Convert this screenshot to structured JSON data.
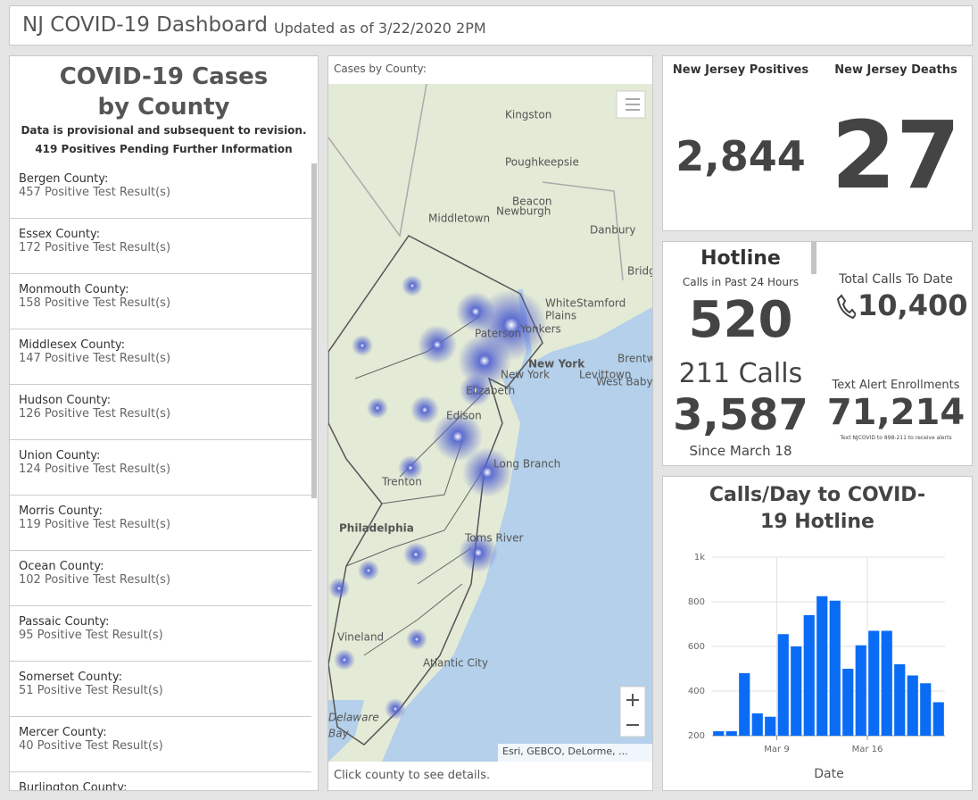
{
  "header": {
    "title": "NJ COVID-19 Dashboard",
    "subtitle": "Updated as of 3/22/2020 2PM"
  },
  "county_panel": {
    "title": "COVID-19 Cases by County",
    "note": "Data is provisional and subsequent to revision.",
    "pending": "419 Positives Pending Further Information",
    "counties": [
      {
        "name": "Bergen County:",
        "result": "457 Positive Test Result(s)"
      },
      {
        "name": "Essex County:",
        "result": "172 Positive Test Result(s)"
      },
      {
        "name": "Monmouth County:",
        "result": "158 Positive Test Result(s)"
      },
      {
        "name": "Middlesex County:",
        "result": "147 Positive Test Result(s)"
      },
      {
        "name": "Hudson County:",
        "result": "126 Positive Test Result(s)"
      },
      {
        "name": "Union County:",
        "result": "124 Positive Test Result(s)"
      },
      {
        "name": "Morris County:",
        "result": "119 Positive Test Result(s)"
      },
      {
        "name": "Ocean County:",
        "result": "102 Positive Test Result(s)"
      },
      {
        "name": "Passaic County:",
        "result": "95 Positive Test Result(s)"
      },
      {
        "name": "Somerset County:",
        "result": "51 Positive Test Result(s)"
      },
      {
        "name": "Mercer County:",
        "result": "40 Positive Test Result(s)"
      },
      {
        "name": "Burlington County:"
      }
    ]
  },
  "map_panel": {
    "title": "Cases by County:",
    "footer": "Click county to see details.",
    "attribution": "Esri, GEBCO, DeLorme, ...",
    "places": [
      "Kingston",
      "Poughkeepsie",
      "Beacon",
      "Newburgh",
      "Middletown",
      "Danbury",
      "Bridg",
      "White",
      "Plains",
      "Stamford",
      "Paterson",
      "Yonkers",
      "New York",
      "New York",
      "Levittown",
      "Brentw",
      "West Baby",
      "Elizabeth",
      "Edison",
      "Long Branch",
      "Trenton",
      "Philadelphia",
      "Toms River",
      "Vineland",
      "Atlantic City",
      "Delaware",
      "Bay"
    ]
  },
  "stats": {
    "positives_label": "New Jersey Positives",
    "positives": "2,844",
    "deaths_label": "New Jersey Deaths",
    "deaths": "27"
  },
  "hotline": {
    "title": "Hotline",
    "calls_label": "Calls in Past 24 Hours",
    "calls": "520",
    "calls211_label": "211 Calls",
    "calls211": "3,587",
    "since": "Since March 18",
    "total_label": "Total Calls To Date",
    "total": "10,400",
    "text_label": "Text Alert Enrollments",
    "text": "71,214",
    "text_note": "Text NJCOVID to 898-211 to receive alerts"
  },
  "chart_data": {
    "type": "bar",
    "title": "Calls/Day to COVID-19 Hotline",
    "x_label": "Date",
    "categories": [
      null,
      null,
      null,
      null,
      null,
      "Mar 9",
      null,
      null,
      null,
      null,
      null,
      null,
      "Mar 16",
      null,
      null,
      null,
      null,
      null
    ],
    "values": [
      220,
      220,
      480,
      300,
      285,
      655,
      600,
      740,
      825,
      805,
      500,
      605,
      670,
      670,
      520,
      470,
      435,
      350
    ],
    "color": "#0a6cf5",
    "ylim": [
      200,
      1000
    ],
    "yticks": [
      200,
      400,
      600,
      800,
      {
        "value": 1000,
        "label": "1k"
      }
    ],
    "grid": true
  }
}
